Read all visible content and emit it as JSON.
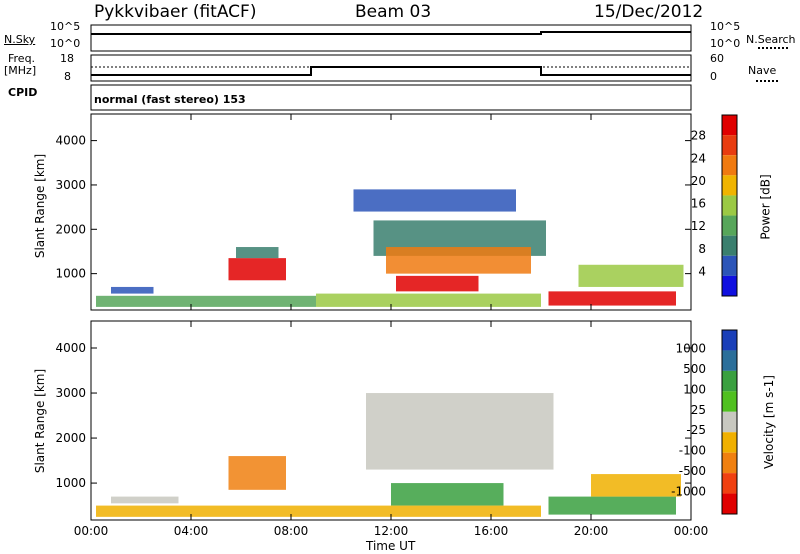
{
  "header": {
    "station": "Pykkvibaer (fitACF)",
    "beam": "Beam 03",
    "date": "15/Dec/2012"
  },
  "noise_panel": {
    "left_label": "N.Sky",
    "right_label": "N.Search",
    "left_ticks": [
      "10^5",
      "10^0"
    ],
    "right_ticks": [
      "10^5",
      "10^0"
    ]
  },
  "freq_panel": {
    "left_label_1": "Freq.",
    "left_label_2": "[MHz]",
    "right_label": "Nave",
    "left_ticks": [
      "18",
      "8"
    ],
    "right_ticks": [
      "60",
      "0"
    ],
    "cpid_label": "CPID",
    "cpid_text": "normal (fast stereo) 153"
  },
  "colors": {
    "power_scale": [
      "#1010e0",
      "#2c55b8",
      "#3a7f6e",
      "#57a65a",
      "#9bc944",
      "#f0b400",
      "#f07a10",
      "#e83c10",
      "#e00000"
    ],
    "velocity_scale": [
      "#e00000",
      "#f04010",
      "#f08010",
      "#f0b000",
      "#c8c8c0",
      "#50c020",
      "#3aa040",
      "#2b6f9a",
      "#1a3fb8"
    ]
  },
  "chart_data": [
    {
      "type": "heatmap",
      "title": "Power",
      "ylabel": "Slant Range [km]",
      "xlabel": "",
      "ylim": [
        180,
        4600
      ],
      "yticks": [
        "4000",
        "3000",
        "2000",
        "1000"
      ],
      "colorbar_label": "Power [dB]",
      "colorbar_ticks": [
        "28",
        "24",
        "20",
        "16",
        "12",
        "8",
        "4"
      ],
      "regions": [
        {
          "t": [
            0.2,
            9.0
          ],
          "r": [
            250,
            500
          ],
          "level": 3
        },
        {
          "t": [
            0.8,
            2.5
          ],
          "r": [
            550,
            700
          ],
          "level": 1
        },
        {
          "t": [
            5.5,
            7.8
          ],
          "r": [
            850,
            1350
          ],
          "level": 8
        },
        {
          "t": [
            5.8,
            7.5
          ],
          "r": [
            1350,
            1600
          ],
          "level": 2
        },
        {
          "t": [
            11.3,
            18.2
          ],
          "r": [
            1400,
            2200
          ],
          "level": 2
        },
        {
          "t": [
            11.8,
            17.6
          ],
          "r": [
            1000,
            1600
          ],
          "level": 6
        },
        {
          "t": [
            12.2,
            15.5
          ],
          "r": [
            600,
            950
          ],
          "level": 8
        },
        {
          "t": [
            9.0,
            18.0
          ],
          "r": [
            250,
            550
          ],
          "level": 4
        },
        {
          "t": [
            18.3,
            23.4
          ],
          "r": [
            280,
            600
          ],
          "level": 8
        },
        {
          "t": [
            19.5,
            23.7
          ],
          "r": [
            700,
            1200
          ],
          "level": 4
        },
        {
          "t": [
            10.5,
            17.0
          ],
          "r": [
            2400,
            2900
          ],
          "level": 1
        }
      ]
    },
    {
      "type": "heatmap",
      "title": "Velocity",
      "ylabel": "Slant Range [km]",
      "xlabel": "Time UT",
      "ylim": [
        180,
        4600
      ],
      "yticks": [
        "4000",
        "3000",
        "2000",
        "1000"
      ],
      "xticks": [
        "00:00",
        "04:00",
        "08:00",
        "12:00",
        "16:00",
        "20:00",
        "00:00"
      ],
      "colorbar_label": "Velocity [m s-1]",
      "colorbar_ticks": [
        "1000",
        "500",
        "100",
        "25",
        "-25",
        "-100",
        "-500",
        "-1000"
      ],
      "regions": [
        {
          "t": [
            0.2,
            9.0
          ],
          "r": [
            250,
            500
          ],
          "level": 3
        },
        {
          "t": [
            0.8,
            3.5
          ],
          "r": [
            550,
            700
          ],
          "level": 4
        },
        {
          "t": [
            5.5,
            7.8
          ],
          "r": [
            850,
            1600
          ],
          "level": 2
        },
        {
          "t": [
            11.0,
            18.5
          ],
          "r": [
            1300,
            3000
          ],
          "level": 4
        },
        {
          "t": [
            12.0,
            16.5
          ],
          "r": [
            500,
            1000
          ],
          "level": 6
        },
        {
          "t": [
            9.0,
            18.0
          ],
          "r": [
            250,
            500
          ],
          "level": 3
        },
        {
          "t": [
            18.3,
            23.4
          ],
          "r": [
            300,
            700
          ],
          "level": 6
        },
        {
          "t": [
            20.0,
            23.6
          ],
          "r": [
            700,
            1200
          ],
          "level": 3
        }
      ]
    }
  ]
}
